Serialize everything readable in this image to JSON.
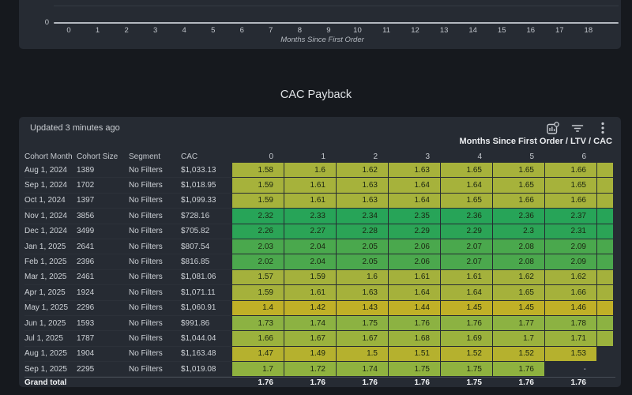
{
  "colors": {
    "page_bg": "#16191e",
    "panel_bg": "#262b33",
    "divider": "#464c55",
    "axis_line": "#b3b8bf",
    "icon": "#c6cad0"
  },
  "chart": {
    "y_zero_label": "0",
    "x_ticks": [
      "0",
      "1",
      "2",
      "3",
      "4",
      "5",
      "6",
      "7",
      "8",
      "9",
      "10",
      "11",
      "12",
      "13",
      "14",
      "15",
      "16",
      "17",
      "18"
    ],
    "x_axis_title": "Months Since First Order"
  },
  "section_title": "CAC Payback",
  "panel": {
    "updated_text": "Updated 3 minutes ago",
    "icons": [
      "explore-chart-icon",
      "filter-icon",
      "kebab-menu-icon"
    ],
    "matrix_header": "Months Since First Order / LTV / CAC",
    "columns": {
      "labels": [
        "Cohort Month",
        "Cohort Size",
        "Segment",
        "CAC"
      ],
      "months": [
        "0",
        "1",
        "2",
        "3",
        "4",
        "5",
        "6"
      ]
    },
    "rows": [
      {
        "month": "Aug 1, 2024",
        "size": "1389",
        "segment": "No Filters",
        "cac": "$1,033.13",
        "values": [
          "1.58",
          "1.6",
          "1.62",
          "1.63",
          "1.65",
          "1.65",
          "1.66"
        ],
        "color": "#a7b23b",
        "overflow": true
      },
      {
        "month": "Sep 1, 2024",
        "size": "1702",
        "segment": "No Filters",
        "cac": "$1,018.95",
        "values": [
          "1.59",
          "1.61",
          "1.63",
          "1.64",
          "1.64",
          "1.65",
          "1.65"
        ],
        "color": "#a6b23b",
        "overflow": true
      },
      {
        "month": "Oct 1, 2024",
        "size": "1397",
        "segment": "No Filters",
        "cac": "$1,099.33",
        "values": [
          "1.59",
          "1.61",
          "1.63",
          "1.64",
          "1.65",
          "1.66",
          "1.66"
        ],
        "color": "#a6b23b",
        "overflow": true
      },
      {
        "month": "Nov 1, 2024",
        "size": "3856",
        "segment": "No Filters",
        "cac": "$728.16",
        "values": [
          "2.32",
          "2.33",
          "2.34",
          "2.35",
          "2.36",
          "2.36",
          "2.37"
        ],
        "color": "#27a458",
        "overflow": true
      },
      {
        "month": "Dec 1, 2024",
        "size": "3499",
        "segment": "No Filters",
        "cac": "$705.82",
        "values": [
          "2.26",
          "2.27",
          "2.28",
          "2.29",
          "2.29",
          "2.3",
          "2.31"
        ],
        "color": "#2ba456",
        "overflow": true
      },
      {
        "month": "Jan 1, 2025",
        "size": "2641",
        "segment": "No Filters",
        "cac": "$807.54",
        "values": [
          "2.03",
          "2.04",
          "2.05",
          "2.06",
          "2.07",
          "2.08",
          "2.09"
        ],
        "color": "#4aa84d",
        "overflow": true
      },
      {
        "month": "Feb 1, 2025",
        "size": "2396",
        "segment": "No Filters",
        "cac": "$816.85",
        "values": [
          "2.02",
          "2.04",
          "2.05",
          "2.06",
          "2.07",
          "2.08",
          "2.09"
        ],
        "color": "#4ba84d",
        "overflow": true
      },
      {
        "month": "Mar 1, 2025",
        "size": "2461",
        "segment": "No Filters",
        "cac": "$1,081.06",
        "values": [
          "1.57",
          "1.59",
          "1.6",
          "1.61",
          "1.61",
          "1.62",
          "1.62"
        ],
        "color": "#a4b13c",
        "overflow": true
      },
      {
        "month": "Apr 1, 2025",
        "size": "1924",
        "segment": "No Filters",
        "cac": "$1,071.11",
        "values": [
          "1.59",
          "1.61",
          "1.63",
          "1.64",
          "1.64",
          "1.65",
          "1.66"
        ],
        "color": "#a5b13b",
        "overflow": true
      },
      {
        "month": "May 1, 2025",
        "size": "2296",
        "segment": "No Filters",
        "cac": "$1,060.91",
        "values": [
          "1.4",
          "1.42",
          "1.43",
          "1.44",
          "1.45",
          "1.45",
          "1.46"
        ],
        "color": "#c0b027",
        "overflow": true
      },
      {
        "month": "Jun 1, 2025",
        "size": "1593",
        "segment": "No Filters",
        "cac": "$991.86",
        "values": [
          "1.73",
          "1.74",
          "1.75",
          "1.76",
          "1.76",
          "1.77",
          "1.78"
        ],
        "color": "#8cb242",
        "overflow": true
      },
      {
        "month": "Jul 1, 2025",
        "size": "1787",
        "segment": "No Filters",
        "cac": "$1,044.04",
        "values": [
          "1.66",
          "1.67",
          "1.67",
          "1.68",
          "1.69",
          "1.7",
          "1.71"
        ],
        "color": "#9bb23d",
        "overflow": true
      },
      {
        "month": "Aug 1, 2025",
        "size": "1904",
        "segment": "No Filters",
        "cac": "$1,163.48",
        "values": [
          "1.47",
          "1.49",
          "1.5",
          "1.51",
          "1.52",
          "1.52",
          "1.53"
        ],
        "color": "#b5b12e",
        "overflow": false
      },
      {
        "month": "Sep 1, 2025",
        "size": "2295",
        "segment": "No Filters",
        "cac": "$1,019.08",
        "values": [
          "1.7",
          "1.72",
          "1.74",
          "1.75",
          "1.75",
          "1.76",
          "-"
        ],
        "color": "#8fb23f",
        "overflow": false
      }
    ],
    "grand_total": {
      "label": "Grand total",
      "values": [
        "1.76",
        "1.76",
        "1.76",
        "1.76",
        "1.75",
        "1.76",
        "1.76"
      ]
    }
  }
}
